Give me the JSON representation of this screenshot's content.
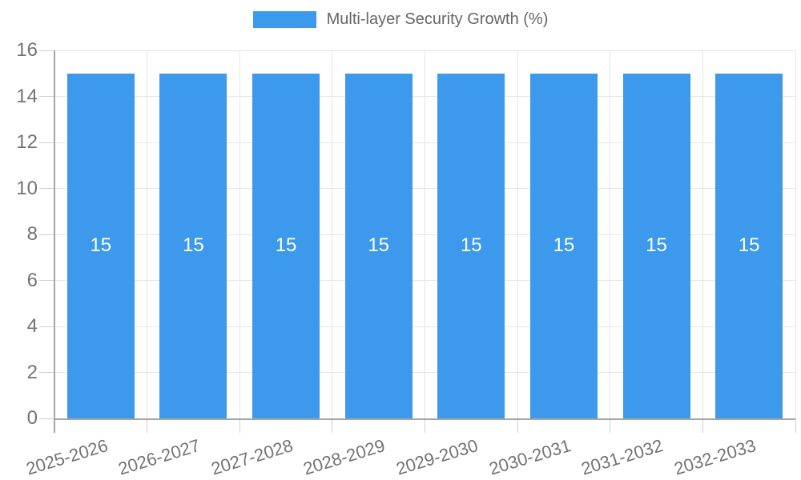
{
  "chart_data": {
    "type": "bar",
    "title": "Multi-layer Security Growth (%)",
    "legend": {
      "label": "Multi-layer Security Growth (%)",
      "position": "top"
    },
    "categories": [
      "2025-2026",
      "2026-2027",
      "2027-2028",
      "2028-2029",
      "2029-2030",
      "2030-2031",
      "2031-2032",
      "2032-2033"
    ],
    "series": [
      {
        "name": "Multi-layer Security Growth (%)",
        "values": [
          15,
          15,
          15,
          15,
          15,
          15,
          15,
          15
        ]
      }
    ],
    "bar_value_labels": [
      "15",
      "15",
      "15",
      "15",
      "15",
      "15",
      "15",
      "15"
    ],
    "xlabel": "",
    "ylabel": "",
    "ylim": [
      0,
      16
    ],
    "yticks": [
      0,
      2,
      4,
      6,
      8,
      10,
      12,
      14,
      16
    ],
    "grid": true,
    "colors": {
      "bar": "#3c99ec",
      "bar_label": "#ffffff",
      "axis_line": "#a6a6a6",
      "gridline": "#e6e6e6",
      "tick_mark": "#cfcfcf",
      "tick_label": "#737373",
      "legend_text": "#666666",
      "background": "#ffffff"
    }
  }
}
